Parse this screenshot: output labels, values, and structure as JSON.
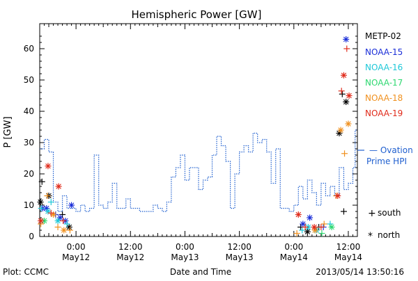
{
  "chart_data": {
    "type": "scatter",
    "title": "Hemispheric Power [GW]",
    "ylabel": "P [GW]",
    "xlabel": "Date and Time",
    "xlim": [
      "2013-05-11 16:00",
      "2013-05-14 14:00"
    ],
    "ylim": [
      0,
      68
    ],
    "yticks": [
      0,
      10,
      20,
      30,
      40,
      50,
      60
    ],
    "xticks": [
      {
        "t": "2013-05-12 00:00",
        "line1": "0:00",
        "line2": "May12"
      },
      {
        "t": "2013-05-12 12:00",
        "line1": "12:00",
        "line2": "May12"
      },
      {
        "t": "2013-05-13 00:00",
        "line1": "0:00",
        "line2": "May13"
      },
      {
        "t": "2013-05-13 12:00",
        "line1": "12:00",
        "line2": "May13"
      },
      {
        "t": "2013-05-14 00:00",
        "line1": "0:00",
        "line2": "May14"
      },
      {
        "t": "2013-05-14 12:00",
        "line1": "12:00",
        "line2": "May14"
      }
    ],
    "grid": false,
    "series": [
      {
        "name": "METP-02",
        "color": "#000000",
        "points": [
          {
            "t": "2013-05-11 16:30",
            "v": 17.5,
            "m": "+"
          },
          {
            "t": "2013-05-11 16:10",
            "v": 11,
            "m": "*"
          },
          {
            "t": "2013-05-11 18:00",
            "v": 13,
            "m": "*"
          },
          {
            "t": "2013-05-11 21:00",
            "v": 7,
            "m": "+"
          },
          {
            "t": "2013-05-11 22:30",
            "v": 3,
            "m": "*"
          },
          {
            "t": "2013-05-14 01:30",
            "v": 3,
            "m": "+"
          },
          {
            "t": "2013-05-14 03:00",
            "v": 1.5,
            "m": "*"
          },
          {
            "t": "2013-05-14 05:30",
            "v": 3,
            "m": "+"
          },
          {
            "t": "2013-05-14 10:00",
            "v": 33,
            "m": "*"
          },
          {
            "t": "2013-05-14 11:00",
            "v": 8,
            "m": "+"
          },
          {
            "t": "2013-05-14 11:30",
            "v": 43,
            "m": "*"
          },
          {
            "t": "2013-05-14 10:40",
            "v": 45.5,
            "m": "+"
          }
        ]
      },
      {
        "name": "NOAA-15",
        "color": "#1a2ed8",
        "points": [
          {
            "t": "2013-05-11 16:40",
            "v": 9,
            "m": "*"
          },
          {
            "t": "2013-05-11 17:30",
            "v": 9,
            "m": "*"
          },
          {
            "t": "2013-05-11 19:30",
            "v": 7,
            "m": "+"
          },
          {
            "t": "2013-05-11 20:30",
            "v": 6,
            "m": "*"
          },
          {
            "t": "2013-05-11 21:40",
            "v": 5,
            "m": "*"
          },
          {
            "t": "2013-05-11 23:00",
            "v": 10,
            "m": "*"
          },
          {
            "t": "2013-05-14 02:00",
            "v": 4,
            "m": "*"
          },
          {
            "t": "2013-05-14 03:30",
            "v": 6,
            "m": "*"
          },
          {
            "t": "2013-05-14 06:30",
            "v": 3,
            "m": "+"
          },
          {
            "t": "2013-05-14 11:30",
            "v": 63,
            "m": "*"
          }
        ]
      },
      {
        "name": "NOAA-16",
        "color": "#1ec8d8",
        "points": [
          {
            "t": "2013-05-11 16:20",
            "v": 9,
            "m": "+"
          },
          {
            "t": "2013-05-11 17:50",
            "v": 8,
            "m": "*"
          },
          {
            "t": "2013-05-11 18:30",
            "v": 11,
            "m": "+"
          },
          {
            "t": "2013-05-11 20:00",
            "v": 5,
            "m": "*"
          },
          {
            "t": "2013-05-11 22:00",
            "v": 4,
            "m": "+"
          },
          {
            "t": "2013-05-14 01:50",
            "v": 2,
            "m": "+"
          },
          {
            "t": "2013-05-14 03:10",
            "v": 3,
            "m": "*"
          },
          {
            "t": "2013-05-14 05:00",
            "v": 2,
            "m": "*"
          },
          {
            "t": "2013-05-14 08:00",
            "v": 4,
            "m": "+"
          }
        ]
      },
      {
        "name": "NOAA-17",
        "color": "#2ed870",
        "points": [
          {
            "t": "2013-05-11 17:00",
            "v": 5,
            "m": "*"
          },
          {
            "t": "2013-05-14 06:10",
            "v": 1,
            "m": "+"
          },
          {
            "t": "2013-05-14 08:20",
            "v": 3,
            "m": "*"
          }
        ]
      },
      {
        "name": "NOAA-18",
        "color": "#f0901e",
        "points": [
          {
            "t": "2013-05-11 16:15",
            "v": 4,
            "m": "+"
          },
          {
            "t": "2013-05-11 17:40",
            "v": 13,
            "m": "+"
          },
          {
            "t": "2013-05-11 19:00",
            "v": 7,
            "m": "*"
          },
          {
            "t": "2013-05-11 20:00",
            "v": 3,
            "m": "+"
          },
          {
            "t": "2013-05-11 21:20",
            "v": 2,
            "m": "*"
          },
          {
            "t": "2013-05-11 22:40",
            "v": 2,
            "m": "+"
          },
          {
            "t": "2013-05-14 00:40",
            "v": 1,
            "m": "+"
          },
          {
            "t": "2013-05-14 04:40",
            "v": 2,
            "m": "*"
          },
          {
            "t": "2013-05-14 06:40",
            "v": 4,
            "m": "+"
          },
          {
            "t": "2013-05-14 09:20",
            "v": 13,
            "m": "+"
          },
          {
            "t": "2013-05-14 10:20",
            "v": 34,
            "m": "*"
          },
          {
            "t": "2013-05-14 11:10",
            "v": 26.5,
            "m": "+"
          },
          {
            "t": "2013-05-14 12:00",
            "v": 36,
            "m": "*"
          }
        ]
      },
      {
        "name": "NOAA-19",
        "color": "#e02a1a",
        "points": [
          {
            "t": "2013-05-11 16:15",
            "v": 5,
            "m": "*"
          },
          {
            "t": "2013-05-11 17:50",
            "v": 22.5,
            "m": "*"
          },
          {
            "t": "2013-05-11 18:30",
            "v": 7.5,
            "m": "+"
          },
          {
            "t": "2013-05-11 20:10",
            "v": 16,
            "m": "*"
          },
          {
            "t": "2013-05-11 21:10",
            "v": 5,
            "m": "+"
          },
          {
            "t": "2013-05-14 01:00",
            "v": 7,
            "m": "*"
          },
          {
            "t": "2013-05-14 02:30",
            "v": 3,
            "m": "+"
          },
          {
            "t": "2013-05-14 04:30",
            "v": 3,
            "m": "*"
          },
          {
            "t": "2013-05-14 06:00",
            "v": 3,
            "m": "+"
          },
          {
            "t": "2013-05-14 09:40",
            "v": 13,
            "m": "*"
          },
          {
            "t": "2013-05-14 10:30",
            "v": 46.5,
            "m": "+"
          },
          {
            "t": "2013-05-14 11:00",
            "v": 51.5,
            "m": "*"
          },
          {
            "t": "2013-05-14 11:40",
            "v": 60,
            "m": "+"
          },
          {
            "t": "2013-05-14 12:10",
            "v": 45,
            "m": "*"
          }
        ]
      },
      {
        "name": "Ovation Prime HPI",
        "color": "#1f5fcf",
        "style": "step-dotted",
        "points": [
          {
            "t": "2013-05-11 16:00",
            "v": 28
          },
          {
            "t": "2013-05-11 17:00",
            "v": 31
          },
          {
            "t": "2013-05-11 18:00",
            "v": 27
          },
          {
            "t": "2013-05-11 19:00",
            "v": 11
          },
          {
            "t": "2013-05-11 20:00",
            "v": 8
          },
          {
            "t": "2013-05-11 21:00",
            "v": 13
          },
          {
            "t": "2013-05-11 22:00",
            "v": 9
          },
          {
            "t": "2013-05-11 23:00",
            "v": 9
          },
          {
            "t": "2013-05-12 00:00",
            "v": 8
          },
          {
            "t": "2013-05-12 01:00",
            "v": 10
          },
          {
            "t": "2013-05-12 02:00",
            "v": 8
          },
          {
            "t": "2013-05-12 03:00",
            "v": 9
          },
          {
            "t": "2013-05-12 04:00",
            "v": 26
          },
          {
            "t": "2013-05-12 05:00",
            "v": 10
          },
          {
            "t": "2013-05-12 06:00",
            "v": 9
          },
          {
            "t": "2013-05-12 07:00",
            "v": 11
          },
          {
            "t": "2013-05-12 08:00",
            "v": 17
          },
          {
            "t": "2013-05-12 09:00",
            "v": 9
          },
          {
            "t": "2013-05-12 10:00",
            "v": 9
          },
          {
            "t": "2013-05-12 11:00",
            "v": 12
          },
          {
            "t": "2013-05-12 12:00",
            "v": 9
          },
          {
            "t": "2013-05-12 14:00",
            "v": 8
          },
          {
            "t": "2013-05-12 17:00",
            "v": 10
          },
          {
            "t": "2013-05-12 18:00",
            "v": 9
          },
          {
            "t": "2013-05-12 19:00",
            "v": 8
          },
          {
            "t": "2013-05-12 20:00",
            "v": 11
          },
          {
            "t": "2013-05-12 21:00",
            "v": 19
          },
          {
            "t": "2013-05-12 22:00",
            "v": 22
          },
          {
            "t": "2013-05-12 23:00",
            "v": 26
          },
          {
            "t": "2013-05-13 00:00",
            "v": 18
          },
          {
            "t": "2013-05-13 01:00",
            "v": 22
          },
          {
            "t": "2013-05-13 03:00",
            "v": 15
          },
          {
            "t": "2013-05-13 04:00",
            "v": 18
          },
          {
            "t": "2013-05-13 05:00",
            "v": 19
          },
          {
            "t": "2013-05-13 06:00",
            "v": 26
          },
          {
            "t": "2013-05-13 07:00",
            "v": 32
          },
          {
            "t": "2013-05-13 08:00",
            "v": 29
          },
          {
            "t": "2013-05-13 09:00",
            "v": 24
          },
          {
            "t": "2013-05-13 10:00",
            "v": 9
          },
          {
            "t": "2013-05-13 11:00",
            "v": 20
          },
          {
            "t": "2013-05-13 12:00",
            "v": 27
          },
          {
            "t": "2013-05-13 13:00",
            "v": 29
          },
          {
            "t": "2013-05-13 14:00",
            "v": 27
          },
          {
            "t": "2013-05-13 15:00",
            "v": 33
          },
          {
            "t": "2013-05-13 16:00",
            "v": 30
          },
          {
            "t": "2013-05-13 17:00",
            "v": 31
          },
          {
            "t": "2013-05-13 18:00",
            "v": 27
          },
          {
            "t": "2013-05-13 19:00",
            "v": 17
          },
          {
            "t": "2013-05-13 20:00",
            "v": 28
          },
          {
            "t": "2013-05-13 21:00",
            "v": 9
          },
          {
            "t": "2013-05-13 22:00",
            "v": 9
          },
          {
            "t": "2013-05-13 23:00",
            "v": 8
          },
          {
            "t": "2013-05-14 00:00",
            "v": 10
          },
          {
            "t": "2013-05-14 01:00",
            "v": 16
          },
          {
            "t": "2013-05-14 02:00",
            "v": 12
          },
          {
            "t": "2013-05-14 03:00",
            "v": 18
          },
          {
            "t": "2013-05-14 04:00",
            "v": 14
          },
          {
            "t": "2013-05-14 05:00",
            "v": 10
          },
          {
            "t": "2013-05-14 06:00",
            "v": 17
          },
          {
            "t": "2013-05-14 07:00",
            "v": 13
          },
          {
            "t": "2013-05-14 08:00",
            "v": 16
          },
          {
            "t": "2013-05-14 09:00",
            "v": 13
          },
          {
            "t": "2013-05-14 10:00",
            "v": 22
          },
          {
            "t": "2013-05-14 11:00",
            "v": 15
          },
          {
            "t": "2013-05-14 12:00",
            "v": 17
          },
          {
            "t": "2013-05-14 13:00",
            "v": 22
          },
          {
            "t": "2013-05-14 13:30",
            "v": 34
          }
        ]
      }
    ],
    "marker_key": [
      {
        "symbol": "+",
        "label": "south"
      },
      {
        "symbol": "*",
        "label": "north"
      }
    ]
  },
  "legend": {
    "items": [
      "METP-02",
      "NOAA-15",
      "NOAA-16",
      "NOAA-17",
      "NOAA-18",
      "NOAA-19"
    ],
    "colors": [
      "#000000",
      "#1a2ed8",
      "#1ec8d8",
      "#2ed870",
      "#f0901e",
      "#e02a1a"
    ],
    "ovation_line1": "— Ovation",
    "ovation_line2": "Prime HPI",
    "ovation_color": "#1f5fcf",
    "south_symbol": "+",
    "south_label": "south",
    "north_symbol": "*",
    "north_label": "north"
  },
  "footer": {
    "left": "Plot: CCMC",
    "center": "Date and Time",
    "right": "2013/05/14 13:50:16"
  }
}
